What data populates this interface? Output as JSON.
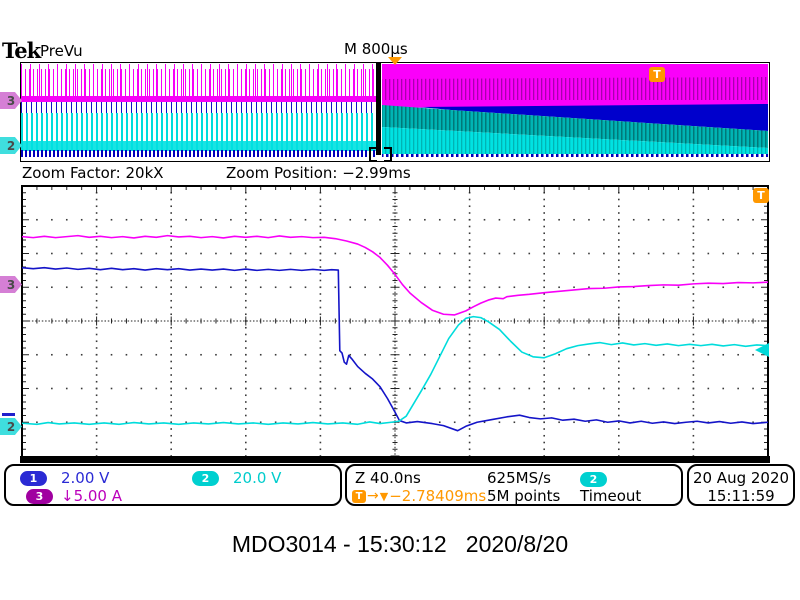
{
  "header": {
    "logo": "Tek",
    "acq_status": "PreVu",
    "timebase": "M 800µs"
  },
  "zoom_bar": {
    "factor_label": "Zoom Factor: 20kX",
    "position_label": "Zoom Position: −2.99ms"
  },
  "markers": {
    "ch3": "3",
    "ch2": "2",
    "trigger": "T"
  },
  "readouts": {
    "ch1": {
      "num": "1",
      "scale": "2.00 V",
      "color": "#2a2ad4"
    },
    "ch2": {
      "num": "2",
      "scale": "20.0 V",
      "color": "#00cccc"
    },
    "ch3": {
      "num": "3",
      "scale": "↓5.00 A",
      "color": "#bb00bb"
    },
    "zoom_scale": "Z 40.0ns",
    "trigger_position": "−2.78409ms",
    "sample_rate": "625MS/s",
    "record_length": "5M points",
    "trigger_source_num": "2",
    "trigger_type": "Timeout",
    "date": "20 Aug 2020",
    "time": "15:11:59"
  },
  "icons": {
    "trigger_arrow": "→",
    "trigger_level": "▼"
  },
  "caption": "MDO3014 - 15:30:12   2020/8/20",
  "chart_data": {
    "type": "line",
    "title": "Oscilloscope zoom window traces",
    "x_divisions": 10,
    "y_divisions": 8,
    "horizontal_scale": "40.0ns/div (zoom), record M 800µs/div",
    "grid": "dotted graticule with center crosshair",
    "series": [
      {
        "name": "CH3 current (5.00 A/div, inverted)",
        "color": "#f800f8",
        "points_div": [
          [
            0,
            1.5
          ],
          [
            0.15,
            1.53
          ],
          [
            0.3,
            1.49
          ],
          [
            0.45,
            1.53
          ],
          [
            0.6,
            1.5
          ],
          [
            0.75,
            1.47
          ],
          [
            0.9,
            1.52
          ],
          [
            1.05,
            1.49
          ],
          [
            1.2,
            1.53
          ],
          [
            1.35,
            1.5
          ],
          [
            1.5,
            1.54
          ],
          [
            1.65,
            1.49
          ],
          [
            1.8,
            1.52
          ],
          [
            1.95,
            1.47
          ],
          [
            2.1,
            1.51
          ],
          [
            2.25,
            1.49
          ],
          [
            2.4,
            1.53
          ],
          [
            2.55,
            1.5
          ],
          [
            2.7,
            1.54
          ],
          [
            2.85,
            1.49
          ],
          [
            3.0,
            1.52
          ],
          [
            3.15,
            1.49
          ],
          [
            3.3,
            1.53
          ],
          [
            3.45,
            1.48
          ],
          [
            3.6,
            1.52
          ],
          [
            3.75,
            1.5
          ],
          [
            3.9,
            1.53
          ],
          [
            4.05,
            1.52
          ],
          [
            4.2,
            1.56
          ],
          [
            4.35,
            1.63
          ],
          [
            4.5,
            1.72
          ],
          [
            4.6,
            1.82
          ],
          [
            4.7,
            1.95
          ],
          [
            4.8,
            2.12
          ],
          [
            4.9,
            2.35
          ],
          [
            5.0,
            2.62
          ],
          [
            5.1,
            2.92
          ],
          [
            5.2,
            3.17
          ],
          [
            5.35,
            3.45
          ],
          [
            5.5,
            3.68
          ],
          [
            5.65,
            3.8
          ],
          [
            5.8,
            3.82
          ],
          [
            5.95,
            3.7
          ],
          [
            6.05,
            3.58
          ],
          [
            6.15,
            3.47
          ],
          [
            6.25,
            3.38
          ],
          [
            6.35,
            3.32
          ],
          [
            6.45,
            3.34
          ],
          [
            6.5,
            3.28
          ],
          [
            6.65,
            3.24
          ],
          [
            6.8,
            3.21
          ],
          [
            7.0,
            3.16
          ],
          [
            7.2,
            3.12
          ],
          [
            7.4,
            3.08
          ],
          [
            7.6,
            3.04
          ],
          [
            7.8,
            3.03
          ],
          [
            8.0,
            2.99
          ],
          [
            8.2,
            2.98
          ],
          [
            8.4,
            2.95
          ],
          [
            8.6,
            2.93
          ],
          [
            8.8,
            2.94
          ],
          [
            9.0,
            2.9
          ],
          [
            9.2,
            2.88
          ],
          [
            9.4,
            2.89
          ],
          [
            9.6,
            2.86
          ],
          [
            9.8,
            2.87
          ],
          [
            10,
            2.85
          ]
        ]
      },
      {
        "name": "CH1 voltage (2.00 V/div)",
        "color": "#1414c8",
        "points_div": [
          [
            0,
            2.42
          ],
          [
            0.15,
            2.45
          ],
          [
            0.3,
            2.42
          ],
          [
            0.45,
            2.46
          ],
          [
            0.6,
            2.43
          ],
          [
            0.75,
            2.47
          ],
          [
            0.9,
            2.44
          ],
          [
            1.05,
            2.48
          ],
          [
            1.2,
            2.44
          ],
          [
            1.35,
            2.48
          ],
          [
            1.5,
            2.45
          ],
          [
            1.65,
            2.49
          ],
          [
            1.8,
            2.45
          ],
          [
            1.95,
            2.48
          ],
          [
            2.1,
            2.45
          ],
          [
            2.25,
            2.49
          ],
          [
            2.4,
            2.46
          ],
          [
            2.55,
            2.49
          ],
          [
            2.7,
            2.46
          ],
          [
            2.85,
            2.5
          ],
          [
            3.0,
            2.46
          ],
          [
            3.15,
            2.5
          ],
          [
            3.3,
            2.47
          ],
          [
            3.45,
            2.5
          ],
          [
            3.6,
            2.47
          ],
          [
            3.75,
            2.5
          ],
          [
            3.9,
            2.47
          ],
          [
            4.05,
            2.5
          ],
          [
            4.15,
            2.48
          ],
          [
            4.24,
            2.49
          ],
          [
            4.26,
            4.88
          ],
          [
            4.29,
            4.95
          ],
          [
            4.32,
            5.22
          ],
          [
            4.35,
            5.28
          ],
          [
            4.38,
            5.02
          ],
          [
            4.42,
            5.12
          ],
          [
            4.5,
            5.35
          ],
          [
            4.6,
            5.55
          ],
          [
            4.7,
            5.72
          ],
          [
            4.8,
            5.95
          ],
          [
            4.9,
            6.3
          ],
          [
            5.0,
            6.7
          ],
          [
            5.06,
            6.95
          ],
          [
            5.15,
            7.02
          ],
          [
            5.3,
            6.98
          ],
          [
            5.5,
            7.04
          ],
          [
            5.65,
            7.1
          ],
          [
            5.84,
            7.25
          ],
          [
            5.95,
            7.12
          ],
          [
            6.1,
            7.0
          ],
          [
            6.3,
            6.92
          ],
          [
            6.5,
            6.84
          ],
          [
            6.67,
            6.79
          ],
          [
            6.8,
            6.86
          ],
          [
            6.95,
            6.9
          ],
          [
            7.1,
            6.87
          ],
          [
            7.25,
            6.94
          ],
          [
            7.4,
            6.91
          ],
          [
            7.55,
            6.97
          ],
          [
            7.7,
            6.93
          ],
          [
            7.85,
            7.0
          ],
          [
            8.0,
            6.96
          ],
          [
            8.15,
            7.02
          ],
          [
            8.3,
            6.97
          ],
          [
            8.45,
            7.03
          ],
          [
            8.6,
            6.99
          ],
          [
            8.75,
            7.04
          ],
          [
            8.9,
            7.0
          ],
          [
            9.05,
            6.97
          ],
          [
            9.2,
            7.02
          ],
          [
            9.35,
            6.98
          ],
          [
            9.5,
            7.03
          ],
          [
            9.65,
            6.99
          ],
          [
            9.8,
            7.04
          ],
          [
            10,
            7.0
          ]
        ]
      },
      {
        "name": "CH2 voltage (20.0 V/div)",
        "color": "#00dcdc",
        "points_div": [
          [
            0,
            7.03
          ],
          [
            0.2,
            7.06
          ],
          [
            0.35,
            7.01
          ],
          [
            0.5,
            7.05
          ],
          [
            0.7,
            7.02
          ],
          [
            0.9,
            7.06
          ],
          [
            1.1,
            7.02
          ],
          [
            1.3,
            7.06
          ],
          [
            1.5,
            7.01
          ],
          [
            1.7,
            7.05
          ],
          [
            1.9,
            7.02
          ],
          [
            2.1,
            7.06
          ],
          [
            2.3,
            7.02
          ],
          [
            2.5,
            7.05
          ],
          [
            2.7,
            7.01
          ],
          [
            2.9,
            7.05
          ],
          [
            3.1,
            7.02
          ],
          [
            3.3,
            7.06
          ],
          [
            3.5,
            7.02
          ],
          [
            3.7,
            7.05
          ],
          [
            3.9,
            7.01
          ],
          [
            4.1,
            7.05
          ],
          [
            4.3,
            7.02
          ],
          [
            4.5,
            7.06
          ],
          [
            4.66,
            6.99
          ],
          [
            4.8,
            7.04
          ],
          [
            4.95,
            7.0
          ],
          [
            5.05,
            6.97
          ],
          [
            5.15,
            6.82
          ],
          [
            5.25,
            6.45
          ],
          [
            5.35,
            6.08
          ],
          [
            5.48,
            5.58
          ],
          [
            5.6,
            5.05
          ],
          [
            5.72,
            4.52
          ],
          [
            5.85,
            4.12
          ],
          [
            5.95,
            3.92
          ],
          [
            6.05,
            3.87
          ],
          [
            6.15,
            3.9
          ],
          [
            6.25,
            4.02
          ],
          [
            6.4,
            4.25
          ],
          [
            6.55,
            4.6
          ],
          [
            6.7,
            4.92
          ],
          [
            6.85,
            5.06
          ],
          [
            7.0,
            5.09
          ],
          [
            7.15,
            4.97
          ],
          [
            7.3,
            4.82
          ],
          [
            7.45,
            4.73
          ],
          [
            7.6,
            4.68
          ],
          [
            7.75,
            4.64
          ],
          [
            7.9,
            4.7
          ],
          [
            8.05,
            4.65
          ],
          [
            8.2,
            4.71
          ],
          [
            8.35,
            4.67
          ],
          [
            8.5,
            4.72
          ],
          [
            8.65,
            4.68
          ],
          [
            8.8,
            4.73
          ],
          [
            8.95,
            4.69
          ],
          [
            9.1,
            4.73
          ],
          [
            9.25,
            4.69
          ],
          [
            9.4,
            4.74
          ],
          [
            9.55,
            4.7
          ],
          [
            9.7,
            4.75
          ],
          [
            9.85,
            4.71
          ],
          [
            10,
            4.73
          ]
        ]
      }
    ],
    "overview_bands": [
      {
        "name": "ch3-area",
        "fill": "#fa00fa",
        "points": [
          [
            361,
            0
          ],
          [
            747,
            0
          ],
          [
            747,
            41
          ],
          [
            361,
            44
          ]
        ]
      },
      {
        "name": "ch3-texture",
        "fill": "pattern:texMag",
        "points": [
          [
            361,
            15
          ],
          [
            747,
            13
          ],
          [
            747,
            36
          ],
          [
            361,
            36
          ]
        ]
      },
      {
        "name": "ch1-area",
        "fill": "#0000cc",
        "points": [
          [
            398,
            43
          ],
          [
            747,
            40
          ],
          [
            747,
            67
          ],
          [
            430,
            46
          ]
        ]
      },
      {
        "name": "ch2-dark-area",
        "fill": "pattern:texTeal",
        "points": [
          [
            361,
            41
          ],
          [
            430,
            46
          ],
          [
            747,
            67
          ],
          [
            747,
            84
          ],
          [
            361,
            63
          ]
        ]
      },
      {
        "name": "ch2-bright-area",
        "fill": "pattern:texCyan",
        "points": [
          [
            361,
            63
          ],
          [
            747,
            84
          ],
          [
            747,
            90
          ],
          [
            361,
            90
          ]
        ]
      },
      {
        "name": "baseline-speckle",
        "fill": "pattern:texBlue",
        "points": [
          [
            361,
            90
          ],
          [
            747,
            90
          ],
          [
            747,
            93
          ],
          [
            361,
            93
          ]
        ]
      }
    ]
  }
}
